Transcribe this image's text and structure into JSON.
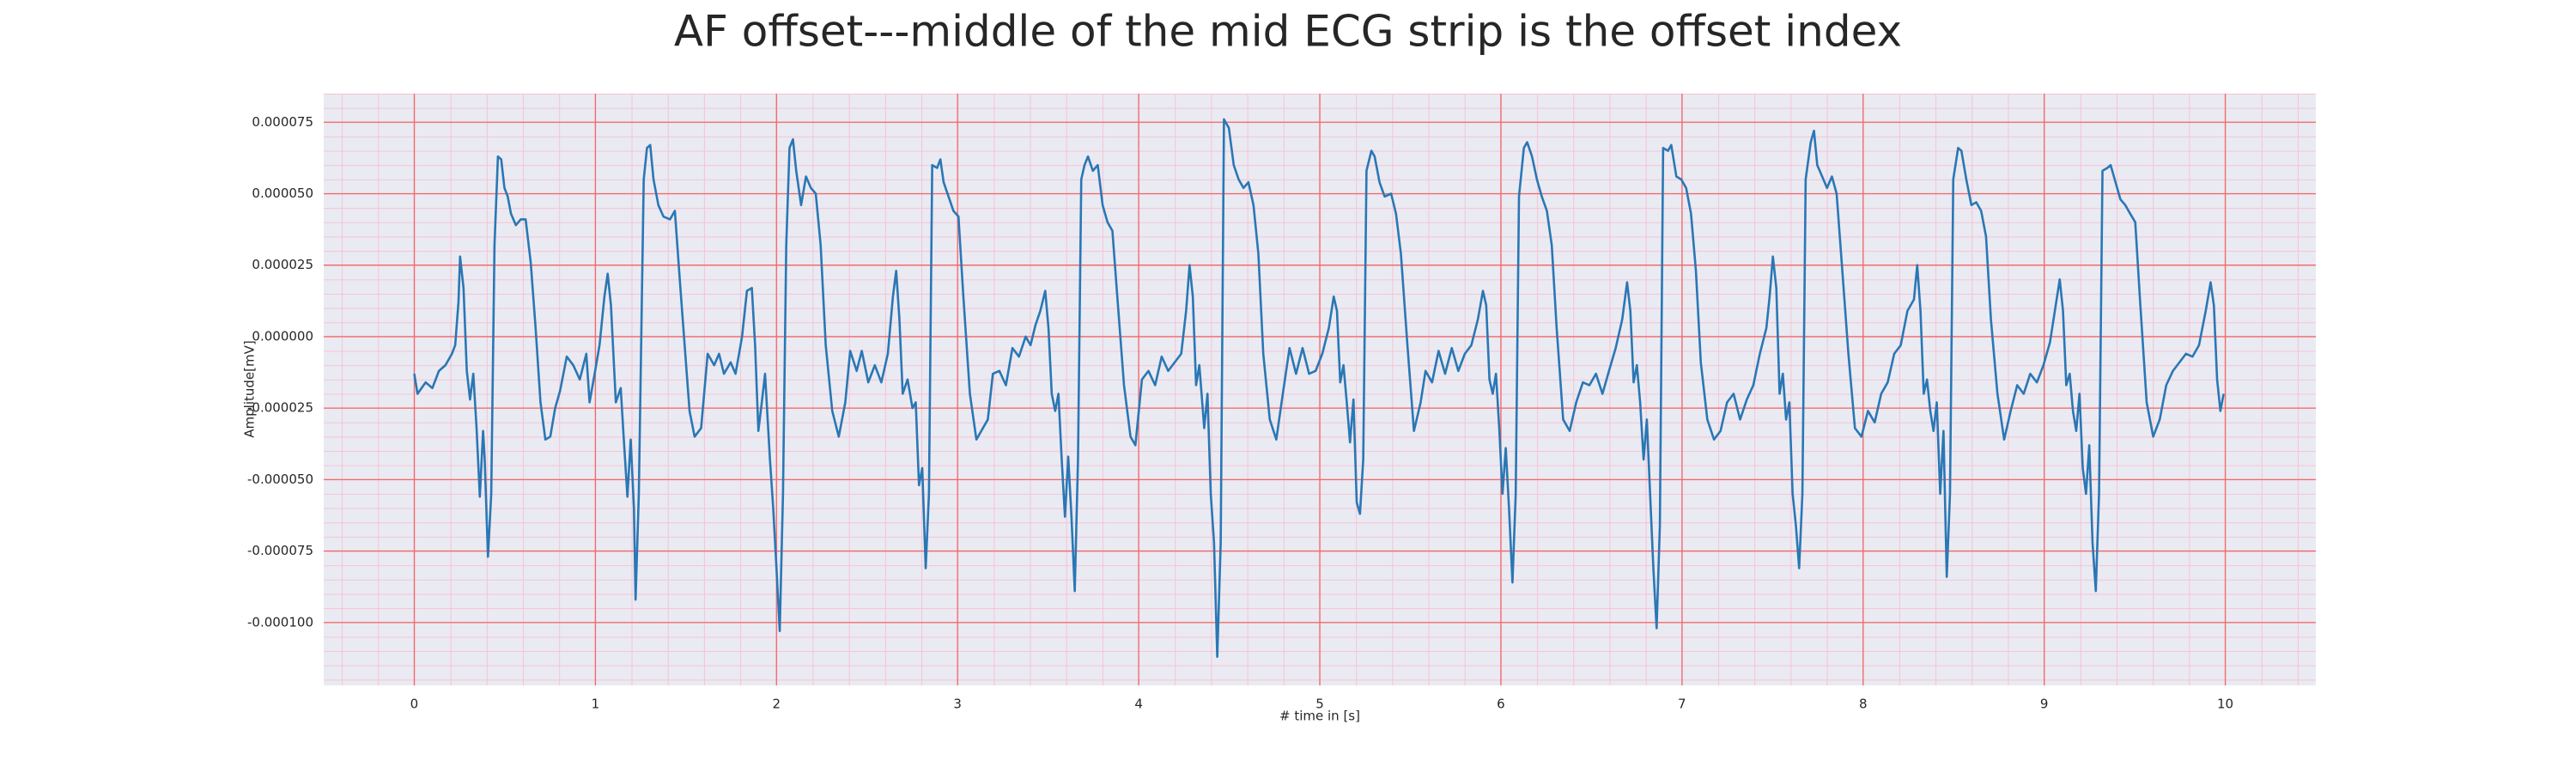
{
  "chart_data": {
    "type": "line",
    "title": "AF offset---middle of the mid ECG strip is the offset index",
    "x_label": "# time in [s]",
    "y_label": "Amplitude[mV]",
    "color": "#2a77b4",
    "grid": true,
    "minor_grid": true,
    "xlim": [
      -0.5,
      10.5
    ],
    "ylim": [
      -0.000122,
      8.5e-05
    ],
    "xticks": [
      0,
      1,
      2,
      3,
      4,
      5,
      6,
      7,
      8,
      9,
      10
    ],
    "yticks": [
      {
        "value": -0.0001,
        "label": "-0.000100"
      },
      {
        "value": -7.5e-05,
        "label": "-0.000075"
      },
      {
        "value": -5e-05,
        "label": "-0.000050"
      },
      {
        "value": -2.5e-05,
        "label": "-0.000025"
      },
      {
        "value": 0,
        "label": "0.000000"
      },
      {
        "value": 2.5e-05,
        "label": "0.000025"
      },
      {
        "value": 5e-05,
        "label": "0.000050"
      },
      {
        "value": 7.5e-05,
        "label": "0.000075"
      }
    ],
    "x": [
      0,
      0.018,
      0.063,
      0.1,
      0.136,
      0.172,
      0.208,
      0.226,
      0.244,
      0.253,
      0.272,
      0.29,
      0.308,
      0.326,
      0.344,
      0.362,
      0.38,
      0.389,
      0.407,
      0.425,
      0.443,
      0.462,
      0.48,
      0.498,
      0.516,
      0.534,
      0.561,
      0.588,
      0.615,
      0.643,
      0.67,
      0.697,
      0.724,
      0.751,
      0.778,
      0.805,
      0.842,
      0.878,
      0.914,
      0.95,
      0.968,
      0.996,
      1.023,
      1.05,
      1.068,
      1.086,
      1.113,
      1.14,
      1.158,
      1.177,
      1.195,
      1.213,
      1.222,
      1.24,
      1.267,
      1.285,
      1.303,
      1.321,
      1.348,
      1.376,
      1.412,
      1.439,
      1.466,
      1.493,
      1.52,
      1.548,
      1.584,
      1.62,
      1.656,
      1.683,
      1.71,
      1.747,
      1.774,
      1.81,
      1.837,
      1.864,
      1.882,
      1.9,
      1.919,
      1.937,
      1.964,
      1.982,
      2,
      2.018,
      2.036,
      2.054,
      2.072,
      2.091,
      2.109,
      2.136,
      2.163,
      2.19,
      2.217,
      2.244,
      2.272,
      2.308,
      2.344,
      2.38,
      2.407,
      2.443,
      2.471,
      2.507,
      2.543,
      2.579,
      2.615,
      2.643,
      2.661,
      2.679,
      2.697,
      2.724,
      2.751,
      2.769,
      2.787,
      2.805,
      2.824,
      2.842,
      2.86,
      2.887,
      2.905,
      2.923,
      2.95,
      2.977,
      3.005,
      3.032,
      3.068,
      3.104,
      3.14,
      3.167,
      3.195,
      3.231,
      3.267,
      3.303,
      3.339,
      3.376,
      3.403,
      3.43,
      3.457,
      3.484,
      3.502,
      3.52,
      3.539,
      3.557,
      3.575,
      3.593,
      3.611,
      3.629,
      3.647,
      3.665,
      3.683,
      3.701,
      3.72,
      3.747,
      3.774,
      3.801,
      3.828,
      3.855,
      3.882,
      3.919,
      3.955,
      3.982,
      4.018,
      4.054,
      4.091,
      4.127,
      4.163,
      4.199,
      4.235,
      4.262,
      4.281,
      4.299,
      4.317,
      4.335,
      4.362,
      4.38,
      4.398,
      4.416,
      4.434,
      4.453,
      4.471,
      4.498,
      4.525,
      4.552,
      4.579,
      4.606,
      4.634,
      4.661,
      4.688,
      4.724,
      4.76,
      4.796,
      4.833,
      4.869,
      4.905,
      4.941,
      4.977,
      5.014,
      5.05,
      5.077,
      5.095,
      5.113,
      5.131,
      5.149,
      5.167,
      5.186,
      5.204,
      5.222,
      5.24,
      5.258,
      5.285,
      5.303,
      5.33,
      5.358,
      5.394,
      5.421,
      5.448,
      5.484,
      5.52,
      5.557,
      5.584,
      5.62,
      5.656,
      5.692,
      5.729,
      5.765,
      5.801,
      5.837,
      5.873,
      5.901,
      5.919,
      5.937,
      5.955,
      5.973,
      5.991,
      6.009,
      6.027,
      6.045,
      6.064,
      6.082,
      6.1,
      6.127,
      6.145,
      6.172,
      6.199,
      6.226,
      6.254,
      6.281,
      6.308,
      6.344,
      6.38,
      6.416,
      6.453,
      6.489,
      6.525,
      6.561,
      6.597,
      6.634,
      6.67,
      6.697,
      6.715,
      6.733,
      6.751,
      6.769,
      6.788,
      6.806,
      6.824,
      6.842,
      6.86,
      6.878,
      6.896,
      6.923,
      6.941,
      6.969,
      6.996,
      7.023,
      7.05,
      7.077,
      7.104,
      7.14,
      7.177,
      7.213,
      7.249,
      7.285,
      7.321,
      7.358,
      7.394,
      7.43,
      7.466,
      7.484,
      7.502,
      7.521,
      7.539,
      7.557,
      7.575,
      7.593,
      7.611,
      7.629,
      7.647,
      7.665,
      7.683,
      7.711,
      7.729,
      7.747,
      7.774,
      7.801,
      7.828,
      7.854,
      7.882,
      7.919,
      7.955,
      7.991,
      8.027,
      8.064,
      8.1,
      8.136,
      8.172,
      8.208,
      8.245,
      8.281,
      8.299,
      8.317,
      8.335,
      8.353,
      8.371,
      8.389,
      8.407,
      8.426,
      8.444,
      8.462,
      8.48,
      8.498,
      8.525,
      8.543,
      8.57,
      8.598,
      8.625,
      8.652,
      8.679,
      8.706,
      8.742,
      8.779,
      8.815,
      8.851,
      8.887,
      8.923,
      8.96,
      8.996,
      9.032,
      9.059,
      9.086,
      9.104,
      9.122,
      9.141,
      9.159,
      9.177,
      9.195,
      9.213,
      9.231,
      9.249,
      9.267,
      9.285,
      9.303,
      9.322,
      9.349,
      9.367,
      9.394,
      9.421,
      9.448,
      9.475,
      9.503,
      9.53,
      9.566,
      9.602,
      9.638,
      9.674,
      9.711,
      9.747,
      9.783,
      9.819,
      9.855,
      9.892,
      9.919,
      9.937,
      9.955,
      9.973,
      9.991
    ],
    "values": [
      -1.3e-05,
      -2e-05,
      -1.6e-05,
      -1.8e-05,
      -1.2e-05,
      -1e-05,
      -6e-06,
      -3e-06,
      1.2e-05,
      2.8e-05,
      1.7e-05,
      -1.2e-05,
      -2.2e-05,
      -1.3e-05,
      -3.2e-05,
      -5.6e-05,
      -3.3e-05,
      -4.3e-05,
      -7.7e-05,
      -5.5e-05,
      3.2e-05,
      6.3e-05,
      6.2e-05,
      5.2e-05,
      4.9e-05,
      4.3e-05,
      3.9e-05,
      4.1e-05,
      4.1e-05,
      2.6e-05,
      3e-06,
      -2.3e-05,
      -3.6e-05,
      -3.5e-05,
      -2.5e-05,
      -1.9e-05,
      -7e-06,
      -1e-05,
      -1.5e-05,
      -6e-06,
      -2.3e-05,
      -1.3e-05,
      -3e-06,
      1.4e-05,
      2.2e-05,
      1.1e-05,
      -2.3e-05,
      -1.8e-05,
      -3.7e-05,
      -5.6e-05,
      -3.6e-05,
      -6e-05,
      -9.2e-05,
      -5.5e-05,
      5.5e-05,
      6.6e-05,
      6.7e-05,
      5.5e-05,
      4.6e-05,
      4.2e-05,
      4.1e-05,
      4.4e-05,
      2e-05,
      -3e-06,
      -2.6e-05,
      -3.5e-05,
      -3.2e-05,
      -6e-06,
      -1e-05,
      -6e-06,
      -1.3e-05,
      -9e-06,
      -1.3e-05,
      0,
      1.6e-05,
      1.7e-05,
      -3e-06,
      -3.3e-05,
      -2.3e-05,
      -1.3e-05,
      -4.3e-05,
      -6e-05,
      -8.1e-05,
      -0.000103,
      -5.5e-05,
      3.2e-05,
      6.6e-05,
      6.9e-05,
      5.8e-05,
      4.6e-05,
      5.6e-05,
      5.2e-05,
      5e-05,
      3.2e-05,
      -3e-06,
      -2.6e-05,
      -3.5e-05,
      -2.3e-05,
      -5e-06,
      -1.2e-05,
      -5e-06,
      -1.6e-05,
      -1e-05,
      -1.6e-05,
      -6e-06,
      1.4e-05,
      2.3e-05,
      6e-06,
      -2e-05,
      -1.5e-05,
      -2.5e-05,
      -2.3e-05,
      -5.2e-05,
      -4.6e-05,
      -8.1e-05,
      -5.5e-05,
      6e-05,
      5.9e-05,
      6.2e-05,
      5.4e-05,
      4.9e-05,
      4.4e-05,
      4.2e-05,
      1.4e-05,
      -2e-05,
      -3.6e-05,
      -3.2e-05,
      -2.9e-05,
      -1.3e-05,
      -1.2e-05,
      -1.7e-05,
      -4e-06,
      -7e-06,
      0,
      -3e-06,
      4e-06,
      9e-06,
      1.6e-05,
      3e-06,
      -2e-05,
      -2.6e-05,
      -2e-05,
      -4.3e-05,
      -6.3e-05,
      -4.2e-05,
      -6.3e-05,
      -8.9e-05,
      -4.3e-05,
      5.5e-05,
      6e-05,
      6.3e-05,
      5.8e-05,
      6e-05,
      4.6e-05,
      4e-05,
      3.7e-05,
      1.4e-05,
      -1.7e-05,
      -3.5e-05,
      -3.8e-05,
      -1.5e-05,
      -1.2e-05,
      -1.7e-05,
      -7e-06,
      -1.2e-05,
      -9e-06,
      -6e-06,
      9e-06,
      2.5e-05,
      1.4e-05,
      -1.7e-05,
      -1e-05,
      -3.2e-05,
      -2e-05,
      -5.5e-05,
      -7.2e-05,
      -0.000112,
      -7.2e-05,
      7.6e-05,
      7.3e-05,
      6e-05,
      5.5e-05,
      5.2e-05,
      5.4e-05,
      4.6e-05,
      2.9e-05,
      -6e-06,
      -2.9e-05,
      -3.6e-05,
      -2e-05,
      -4e-06,
      -1.3e-05,
      -4e-06,
      -1.3e-05,
      -1.2e-05,
      -6e-06,
      3e-06,
      1.4e-05,
      9e-06,
      -1.6e-05,
      -1e-05,
      -2.3e-05,
      -3.7e-05,
      -2.2e-05,
      -5.8e-05,
      -6.2e-05,
      -4.3e-05,
      5.8e-05,
      6.5e-05,
      6.3e-05,
      5.4e-05,
      4.9e-05,
      5e-05,
      4.3e-05,
      2.9e-05,
      -3e-06,
      -3.3e-05,
      -2.3e-05,
      -1.2e-05,
      -1.6e-05,
      -5e-06,
      -1.3e-05,
      -4e-06,
      -1.2e-05,
      -6e-06,
      -3e-06,
      6e-06,
      1.6e-05,
      1.1e-05,
      -1.5e-05,
      -2e-05,
      -1.3e-05,
      -3.2e-05,
      -5.5e-05,
      -3.9e-05,
      -6e-05,
      -8.6e-05,
      -5.5e-05,
      4.9e-05,
      6.6e-05,
      6.8e-05,
      6.3e-05,
      5.5e-05,
      4.9e-05,
      4.4e-05,
      3.2e-05,
      3e-06,
      -2.9e-05,
      -3.3e-05,
      -2.3e-05,
      -1.6e-05,
      -1.7e-05,
      -1.3e-05,
      -2e-05,
      -1.2e-05,
      -4e-06,
      6e-06,
      1.9e-05,
      9e-06,
      -1.6e-05,
      -1e-05,
      -2.3e-05,
      -4.3e-05,
      -2.9e-05,
      -5.5e-05,
      -8.1e-05,
      -0.000102,
      -6.6e-05,
      6.6e-05,
      6.5e-05,
      6.7e-05,
      5.6e-05,
      5.5e-05,
      5.2e-05,
      4.3e-05,
      2.3e-05,
      -9e-06,
      -2.9e-05,
      -3.6e-05,
      -3.3e-05,
      -2.3e-05,
      -2e-05,
      -2.9e-05,
      -2.2e-05,
      -1.7e-05,
      -6e-06,
      3e-06,
      1.4e-05,
      2.8e-05,
      1.7e-05,
      -2e-05,
      -1.3e-05,
      -2.9e-05,
      -2.3e-05,
      -5.5e-05,
      -6.6e-05,
      -8.1e-05,
      -5.5e-05,
      5.5e-05,
      6.8e-05,
      7.2e-05,
      6e-05,
      5.6e-05,
      5.2e-05,
      5.6e-05,
      5e-05,
      2.6e-05,
      -6e-06,
      -3.2e-05,
      -3.5e-05,
      -2.6e-05,
      -3e-05,
      -2e-05,
      -1.6e-05,
      -6e-06,
      -3e-06,
      9e-06,
      1.3e-05,
      2.5e-05,
      9e-06,
      -2e-05,
      -1.5e-05,
      -2.6e-05,
      -3.3e-05,
      -2.3e-05,
      -5.5e-05,
      -3.3e-05,
      -8.4e-05,
      -5.5e-05,
      5.5e-05,
      6.6e-05,
      6.5e-05,
      5.5e-05,
      4.6e-05,
      4.7e-05,
      4.4e-05,
      3.5e-05,
      6e-06,
      -2e-05,
      -3.6e-05,
      -2.6e-05,
      -1.7e-05,
      -2e-05,
      -1.3e-05,
      -1.6e-05,
      -1e-05,
      -2e-06,
      9e-06,
      2e-05,
      9e-06,
      -1.7e-05,
      -1.3e-05,
      -2.6e-05,
      -3.3e-05,
      -2e-05,
      -4.6e-05,
      -5.5e-05,
      -3.8e-05,
      -7.2e-05,
      -8.9e-05,
      -5.5e-05,
      5.8e-05,
      5.9e-05,
      6e-05,
      5.4e-05,
      4.8e-05,
      4.6e-05,
      4.3e-05,
      4e-05,
      1.2e-05,
      -2.3e-05,
      -3.5e-05,
      -2.9e-05,
      -1.7e-05,
      -1.2e-05,
      -9e-06,
      -6e-06,
      -7e-06,
      -3e-06,
      9e-06,
      1.9e-05,
      1.1e-05,
      -1.5e-05,
      -2.6e-05,
      -2e-05
    ]
  }
}
